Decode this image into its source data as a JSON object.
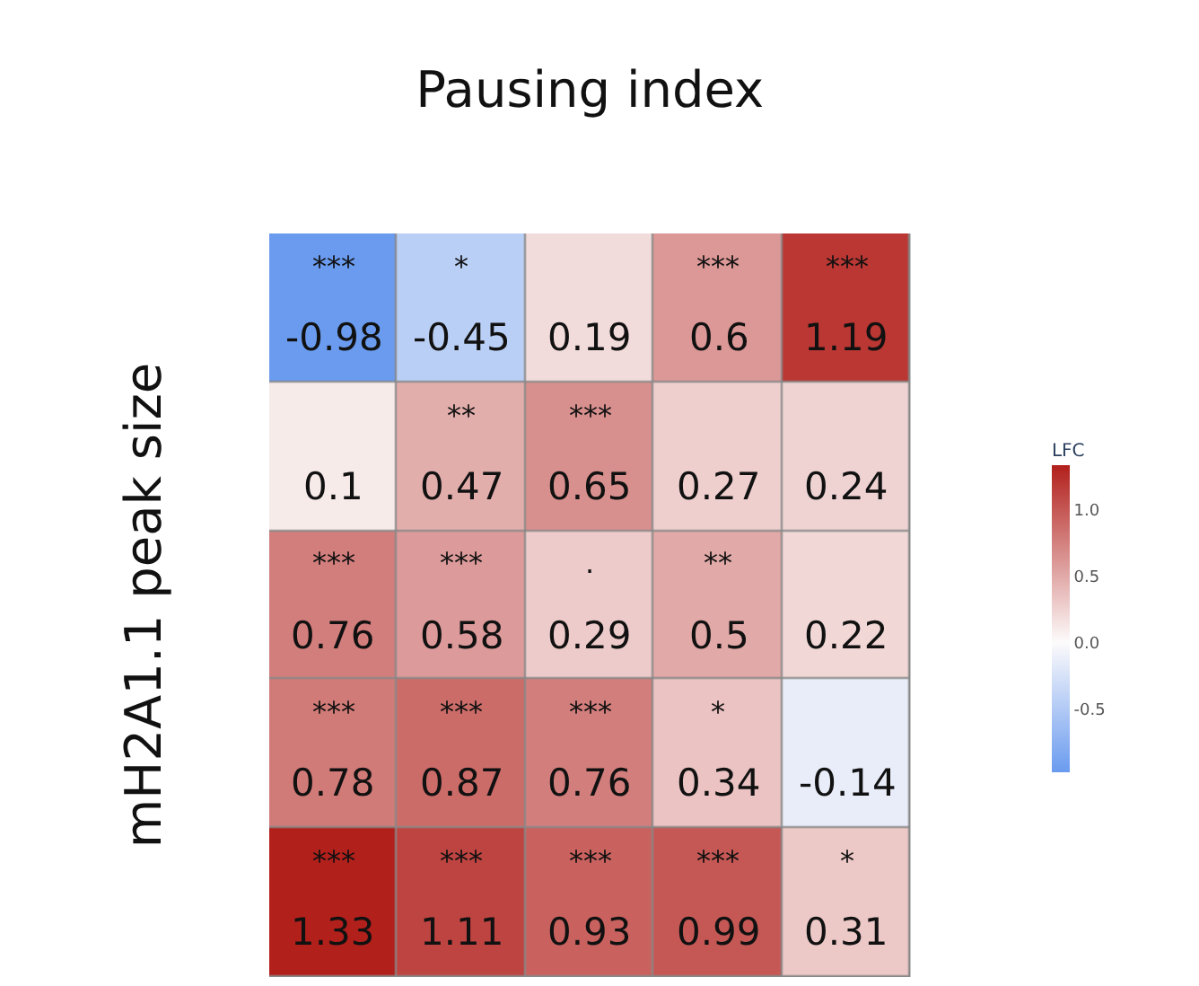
{
  "chart_data": {
    "type": "heatmap",
    "xlabel": "Pausing index",
    "ylabel": "mH2A1.1 peak size",
    "clabel": "LFC",
    "categories": [
      null,
      null,
      null,
      null,
      null
    ],
    "y_categories": [
      null,
      null,
      null,
      null,
      null
    ],
    "cells": [
      [
        -0.98,
        -0.45,
        0.19,
        0.6,
        1.19
      ],
      [
        0.1,
        0.47,
        0.65,
        0.27,
        0.24
      ],
      [
        0.76,
        0.58,
        0.29,
        0.5,
        0.22
      ],
      [
        0.78,
        0.87,
        0.76,
        0.34,
        -0.14
      ],
      [
        1.33,
        1.11,
        0.93,
        0.99,
        0.31
      ]
    ],
    "cell_labels": [
      [
        "***\n-0.98",
        "*\n-0.45",
        "0.19",
        "***\n0.6",
        "***\n1.19"
      ],
      [
        "0.1",
        "**\n0.47",
        "***\n0.65",
        "0.27",
        "0.24"
      ],
      [
        "***\n0.76",
        "***\n0.58",
        ".\n0.29",
        "**\n0.5",
        "0.22"
      ],
      [
        "***\n0.78",
        "***\n0.87",
        "***\n0.76",
        "*\n0.34",
        "-0.14"
      ],
      [
        "***\n1.33",
        "***\n1.11",
        "***\n0.93",
        "***\n0.99",
        "*\n0.31"
      ]
    ],
    "clim": [
      -0.98,
      1.33
    ],
    "cticks": [
      {
        "value": -0.5,
        "label": "-0.5"
      },
      {
        "value": 0.0,
        "label": "0.0"
      },
      {
        "value": 0.5,
        "label": "0.5"
      },
      {
        "value": 1.0,
        "label": "1.0"
      }
    ]
  }
}
